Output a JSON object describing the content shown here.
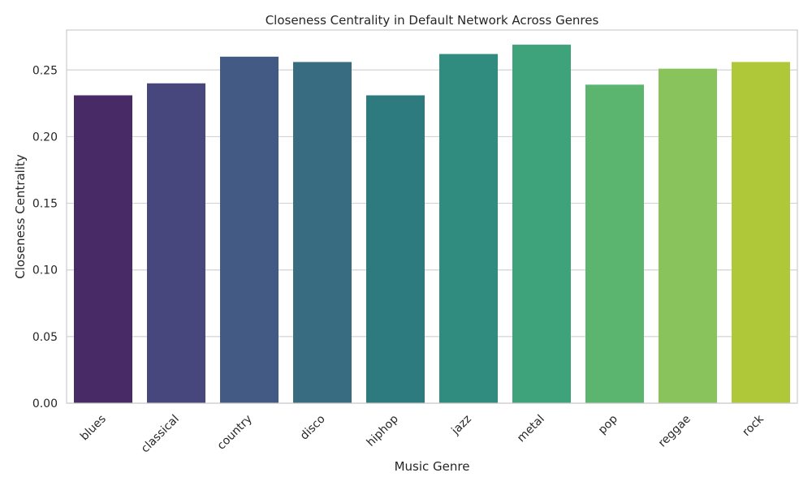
{
  "chart_data": {
    "type": "bar",
    "title": "Closeness Centrality in Default Network Across Genres",
    "xlabel": "Music Genre",
    "ylabel": "Closeness Centrality",
    "categories": [
      "blues",
      "classical",
      "country",
      "disco",
      "hiphop",
      "jazz",
      "metal",
      "pop",
      "reggae",
      "rock"
    ],
    "values": [
      0.231,
      0.24,
      0.26,
      0.256,
      0.231,
      0.262,
      0.269,
      0.239,
      0.251,
      0.256
    ],
    "colors": [
      "#482a67",
      "#48477d",
      "#425a84",
      "#386c80",
      "#2e7b7f",
      "#2f8c7e",
      "#3ea37a",
      "#5cb56f",
      "#88c45b",
      "#afc83a"
    ],
    "ylim": [
      0,
      0.28
    ],
    "yticks": [
      0.0,
      0.05,
      0.1,
      0.15,
      0.2,
      0.25
    ],
    "ytick_labels": [
      "0.00",
      "0.05",
      "0.10",
      "0.15",
      "0.20",
      "0.25"
    ],
    "grid": "horizontal",
    "legend": "none"
  }
}
